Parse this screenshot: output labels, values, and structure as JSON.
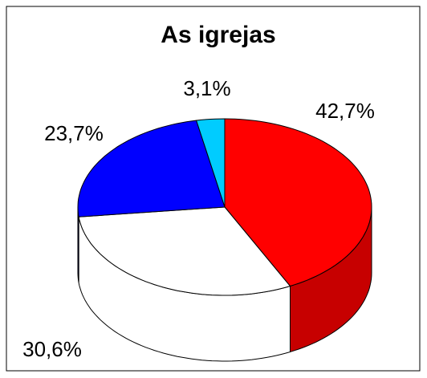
{
  "chart_data": {
    "type": "pie",
    "title": "As igrejas",
    "values": [
      42.7,
      30.6,
      23.7,
      3.1
    ],
    "value_labels": [
      "42,7%",
      "30,6%",
      "23,7%",
      "3,1%"
    ],
    "colors": [
      "#ff0000",
      "#ffffff",
      "#0000ff",
      "#00ccff"
    ]
  }
}
